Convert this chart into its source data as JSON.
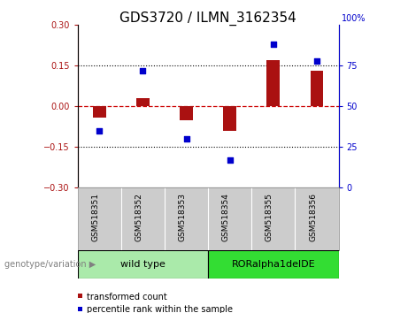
{
  "title": "GDS3720 / ILMN_3162354",
  "categories": [
    "GSM518351",
    "GSM518352",
    "GSM518353",
    "GSM518354",
    "GSM518355",
    "GSM518356"
  ],
  "red_bars": [
    -0.04,
    0.03,
    -0.05,
    -0.09,
    0.17,
    0.13
  ],
  "blue_dots": [
    35,
    72,
    30,
    17,
    88,
    78
  ],
  "ylim_left": [
    -0.3,
    0.3
  ],
  "ylim_right": [
    0,
    100
  ],
  "yticks_left": [
    -0.3,
    -0.15,
    0,
    0.15,
    0.3
  ],
  "yticks_right": [
    0,
    25,
    50,
    75,
    100
  ],
  "hlines_dotted": [
    -0.15,
    0.15
  ],
  "genotype_groups": [
    {
      "label": "wild type",
      "start": 0,
      "end": 3,
      "color": "#aaeaaa"
    },
    {
      "label": "RORalpha1delDE",
      "start": 3,
      "end": 6,
      "color": "#33dd33"
    }
  ],
  "bar_color": "#aa1111",
  "dot_color": "#0000cc",
  "zero_line_color": "#cc0000",
  "tick_bg_color": "#cccccc",
  "title_fontsize": 11,
  "tick_fontsize": 7,
  "genotype_label": "genotype/variation",
  "legend_red": "transformed count",
  "legend_blue": "percentile rank within the sample",
  "bar_width": 0.3
}
